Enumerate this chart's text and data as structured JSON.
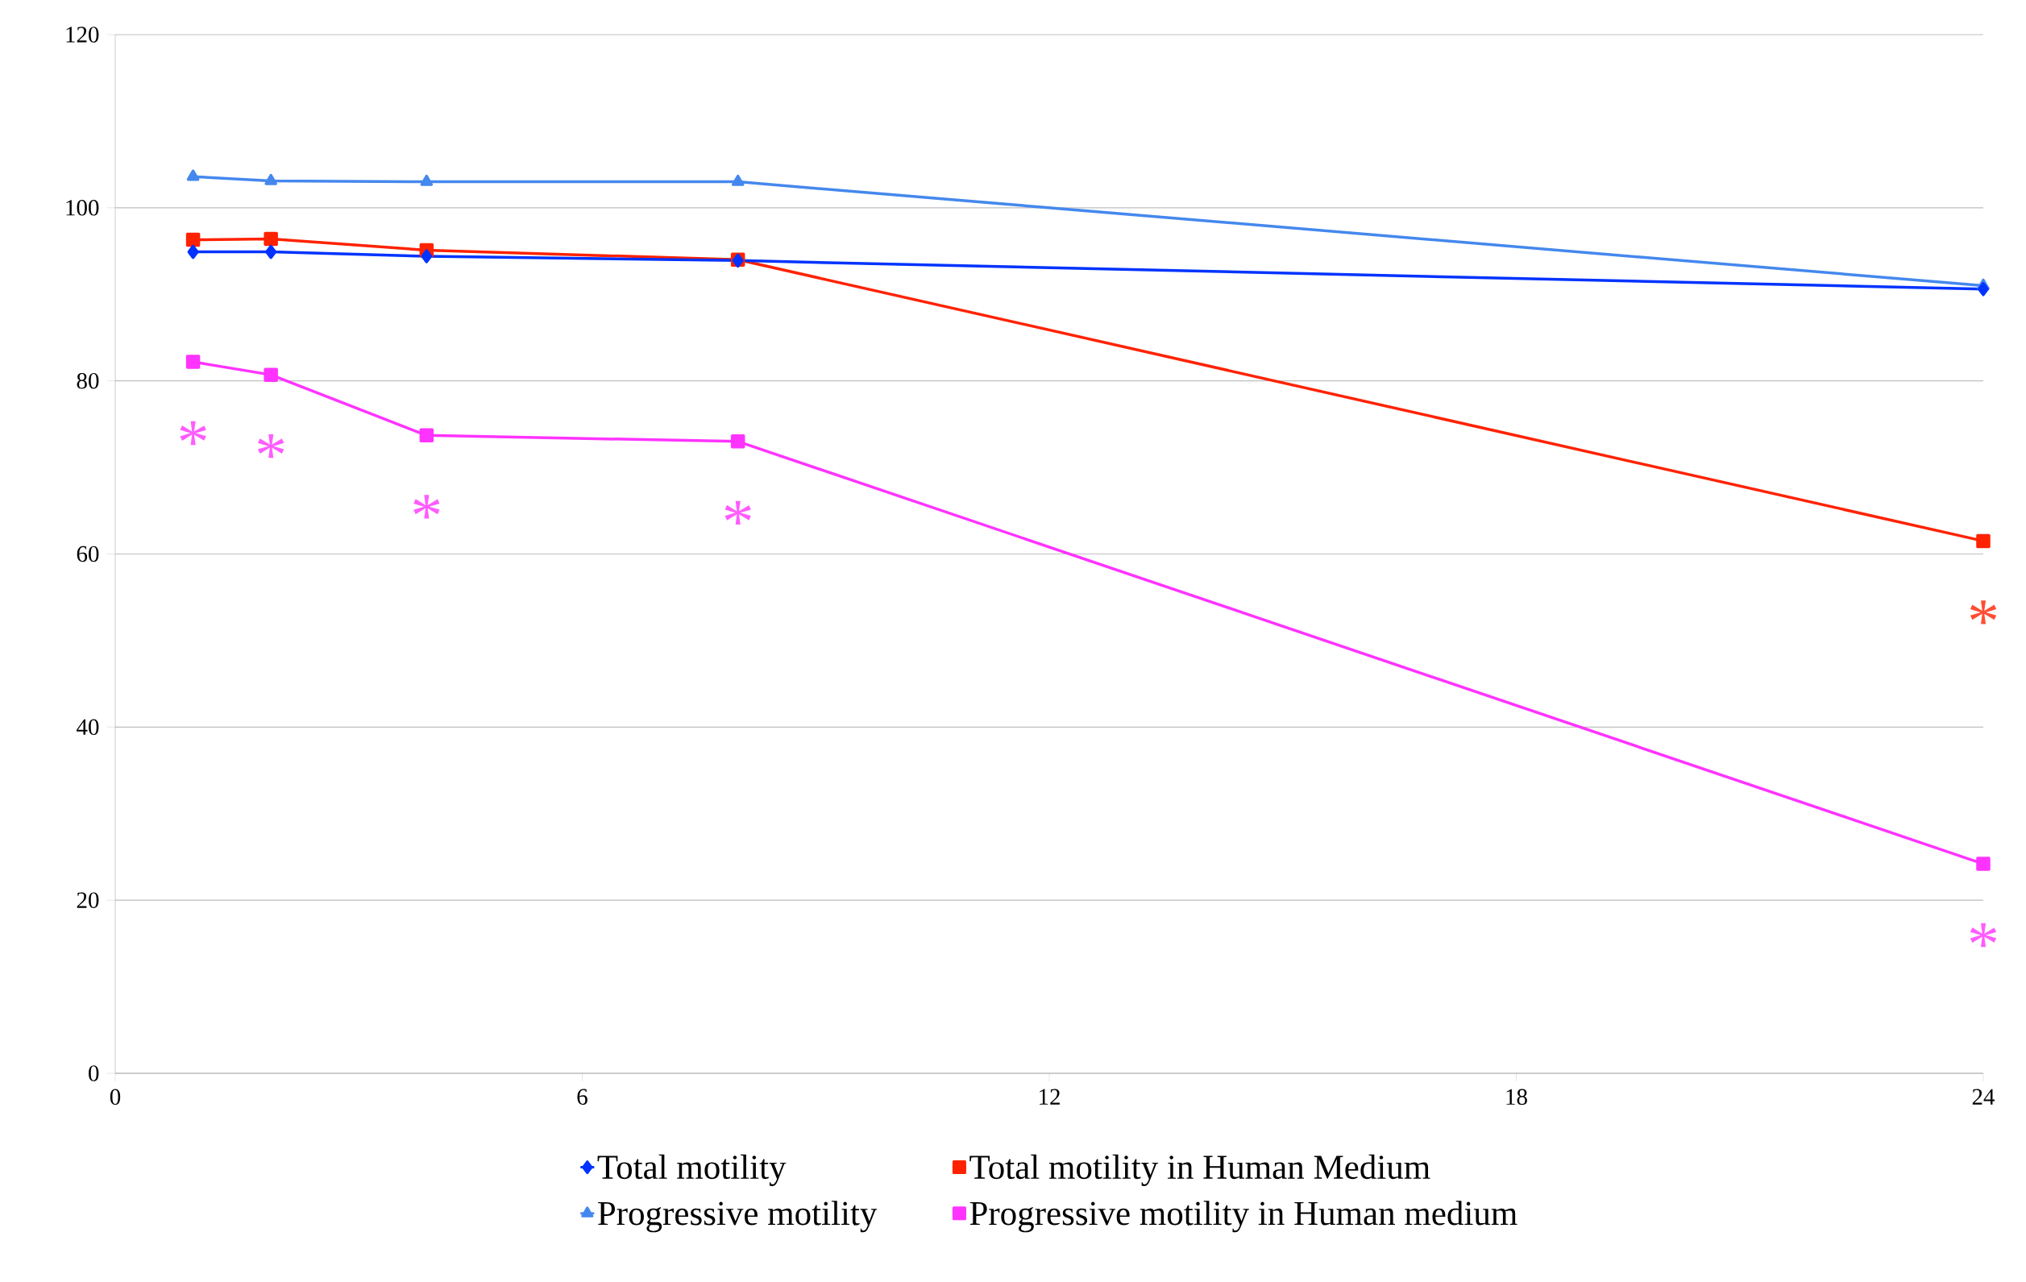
{
  "chart_data": {
    "type": "line",
    "xlim": [
      0,
      24
    ],
    "xticks": [
      0,
      6,
      12,
      18,
      24
    ],
    "ylim": [
      0,
      120
    ],
    "yticks": [
      0,
      20,
      40,
      60,
      80,
      100,
      120
    ],
    "grid": "y",
    "legend": "bottom",
    "series": [
      {
        "name": "Total motility",
        "color": "#0033ff",
        "marker": "diamond",
        "x": [
          1,
          2,
          4,
          8,
          24
        ],
        "values": [
          94.9,
          94.9,
          94.4,
          93.9,
          90.6
        ]
      },
      {
        "name": "Total motility in Human Medium",
        "color": "#ff2200",
        "marker": "square",
        "x": [
          1,
          2,
          4,
          8,
          24
        ],
        "values": [
          96.3,
          96.4,
          95.1,
          94.0,
          61.5
        ]
      },
      {
        "name": "Progressive motility",
        "color": "#4488ee",
        "marker": "triangle",
        "x": [
          1,
          2,
          4,
          8,
          24
        ],
        "values": [
          103.6,
          103.1,
          103.0,
          103.0,
          91.0
        ]
      },
      {
        "name": "Progressive motility in Human medium",
        "color": "#ff33ff",
        "marker": "square",
        "x": [
          1,
          2,
          4,
          8,
          24
        ],
        "values": [
          82.2,
          80.7,
          73.7,
          73.0,
          24.2
        ]
      }
    ],
    "annotations": [
      {
        "text": "*",
        "x": 1,
        "y": 82.2
      },
      {
        "text": "*",
        "x": 2,
        "y": 80.7
      },
      {
        "text": "*",
        "x": 4,
        "y": 73.7
      },
      {
        "text": "*",
        "x": 8,
        "y": 73.0
      },
      {
        "text": "*",
        "x": 24,
        "y": 61.5
      },
      {
        "text": "*",
        "x": 24,
        "y": 24.2
      }
    ]
  }
}
